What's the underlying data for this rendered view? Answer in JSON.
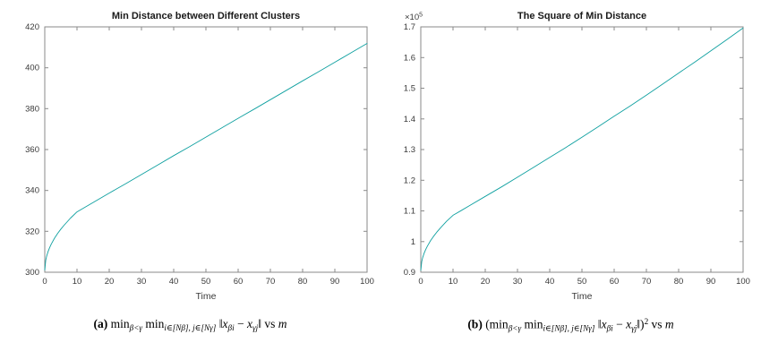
{
  "figure": {
    "captions": {
      "a": [
        {
          "text": "(a) ",
          "style": "bold"
        },
        {
          "text": "min",
          "style": "roman"
        },
        {
          "text": "β<γ",
          "style": "subitalic"
        },
        {
          "text": " min",
          "style": "roman"
        },
        {
          "text": "i∈[Nβ], j∈[Nγ]",
          "style": "subitalic"
        },
        {
          "text": " ‖",
          "style": "roman"
        },
        {
          "text": "x",
          "style": "italic"
        },
        {
          "text": "βi",
          "style": "subitalic"
        },
        {
          "text": " − ",
          "style": "roman"
        },
        {
          "text": "x",
          "style": "italic"
        },
        {
          "text": "γj",
          "style": "subitalic"
        },
        {
          "text": "‖ vs ",
          "style": "roman"
        },
        {
          "text": "m",
          "style": "italic"
        }
      ],
      "b": [
        {
          "text": "(b) ",
          "style": "bold"
        },
        {
          "text": "(min",
          "style": "roman"
        },
        {
          "text": "β<γ",
          "style": "subitalic"
        },
        {
          "text": " min",
          "style": "roman"
        },
        {
          "text": "i∈[Nβ], j∈[Nγ]",
          "style": "subitalic"
        },
        {
          "text": " ‖",
          "style": "roman"
        },
        {
          "text": "x",
          "style": "italic"
        },
        {
          "text": "βi",
          "style": "subitalic"
        },
        {
          "text": " − ",
          "style": "roman"
        },
        {
          "text": "x",
          "style": "italic"
        },
        {
          "text": "γj",
          "style": "subitalic"
        },
        {
          "text": "‖)",
          "style": "roman"
        },
        {
          "text": "2",
          "style": "sup"
        },
        {
          "text": " vs ",
          "style": "roman"
        },
        {
          "text": "m",
          "style": "italic"
        }
      ]
    }
  },
  "chart_data": [
    {
      "id": "min-distance",
      "type": "line",
      "title": "Min Distance between Different Clusters",
      "xlabel": "Time",
      "ylabel": "",
      "grid": false,
      "legend": null,
      "xlim": [
        0,
        100
      ],
      "ylim": [
        300,
        420
      ],
      "xticks": [
        0,
        10,
        20,
        30,
        40,
        50,
        60,
        70,
        80,
        90,
        100
      ],
      "yticks": [
        300,
        320,
        340,
        360,
        380,
        400,
        420
      ],
      "line_color": "#0fa0a0",
      "axis_color": "#8a8a8a",
      "x": [
        0,
        0.3,
        0.6,
        1,
        1.5,
        2,
        3,
        4,
        5,
        6,
        8,
        10,
        12.5,
        15,
        20,
        25,
        30,
        35,
        40,
        45,
        50,
        55,
        60,
        65,
        70,
        75,
        80,
        85,
        90,
        95,
        100
      ],
      "y": [
        301,
        305.9,
        308,
        310,
        312,
        313.7,
        316.6,
        319,
        321.1,
        323,
        326.5,
        329.5,
        331.8,
        334.1,
        338.7,
        343.2,
        347.8,
        352.4,
        357,
        361.5,
        366.1,
        370.7,
        375.3,
        379.8,
        384.4,
        389,
        393.6,
        398.1,
        402.7,
        407.3,
        411.9
      ]
    },
    {
      "id": "squared-min-distance",
      "type": "line",
      "title": "The Square of Min Distance",
      "xlabel": "Time",
      "ylabel": "",
      "grid": false,
      "legend": null,
      "xlim": [
        0,
        100
      ],
      "ylim": [
        90000,
        170000
      ],
      "xticks": [
        0,
        10,
        20,
        30,
        40,
        50,
        60,
        70,
        80,
        90,
        100
      ],
      "yticks": [
        90000,
        100000,
        110000,
        120000,
        130000,
        140000,
        150000,
        160000,
        170000
      ],
      "ytick_labels": [
        "0.9",
        "1",
        "1.1",
        "1.2",
        "1.3",
        "1.4",
        "1.5",
        "1.6",
        "1.7"
      ],
      "y_exponent_base": "×10",
      "y_exponent": "5",
      "line_color": "#0fa0a0",
      "axis_color": "#8a8a8a",
      "x": [
        0,
        0.3,
        0.6,
        1,
        1.5,
        2,
        3,
        4,
        5,
        6,
        8,
        10,
        12.5,
        15,
        20,
        25,
        30,
        35,
        40,
        45,
        50,
        55,
        60,
        65,
        70,
        75,
        80,
        85,
        90,
        95,
        100
      ],
      "y": [
        90601,
        93575,
        94864,
        96100,
        97344,
        98408,
        100236,
        101761,
        103105,
        104329,
        106602,
        108570,
        110091,
        111623,
        114718,
        117786,
        120965,
        124186,
        127449,
        130682,
        134029,
        137418,
        140850,
        144248,
        147763,
        151321,
        154921,
        158484,
        162167,
        165893,
        169662
      ]
    }
  ]
}
